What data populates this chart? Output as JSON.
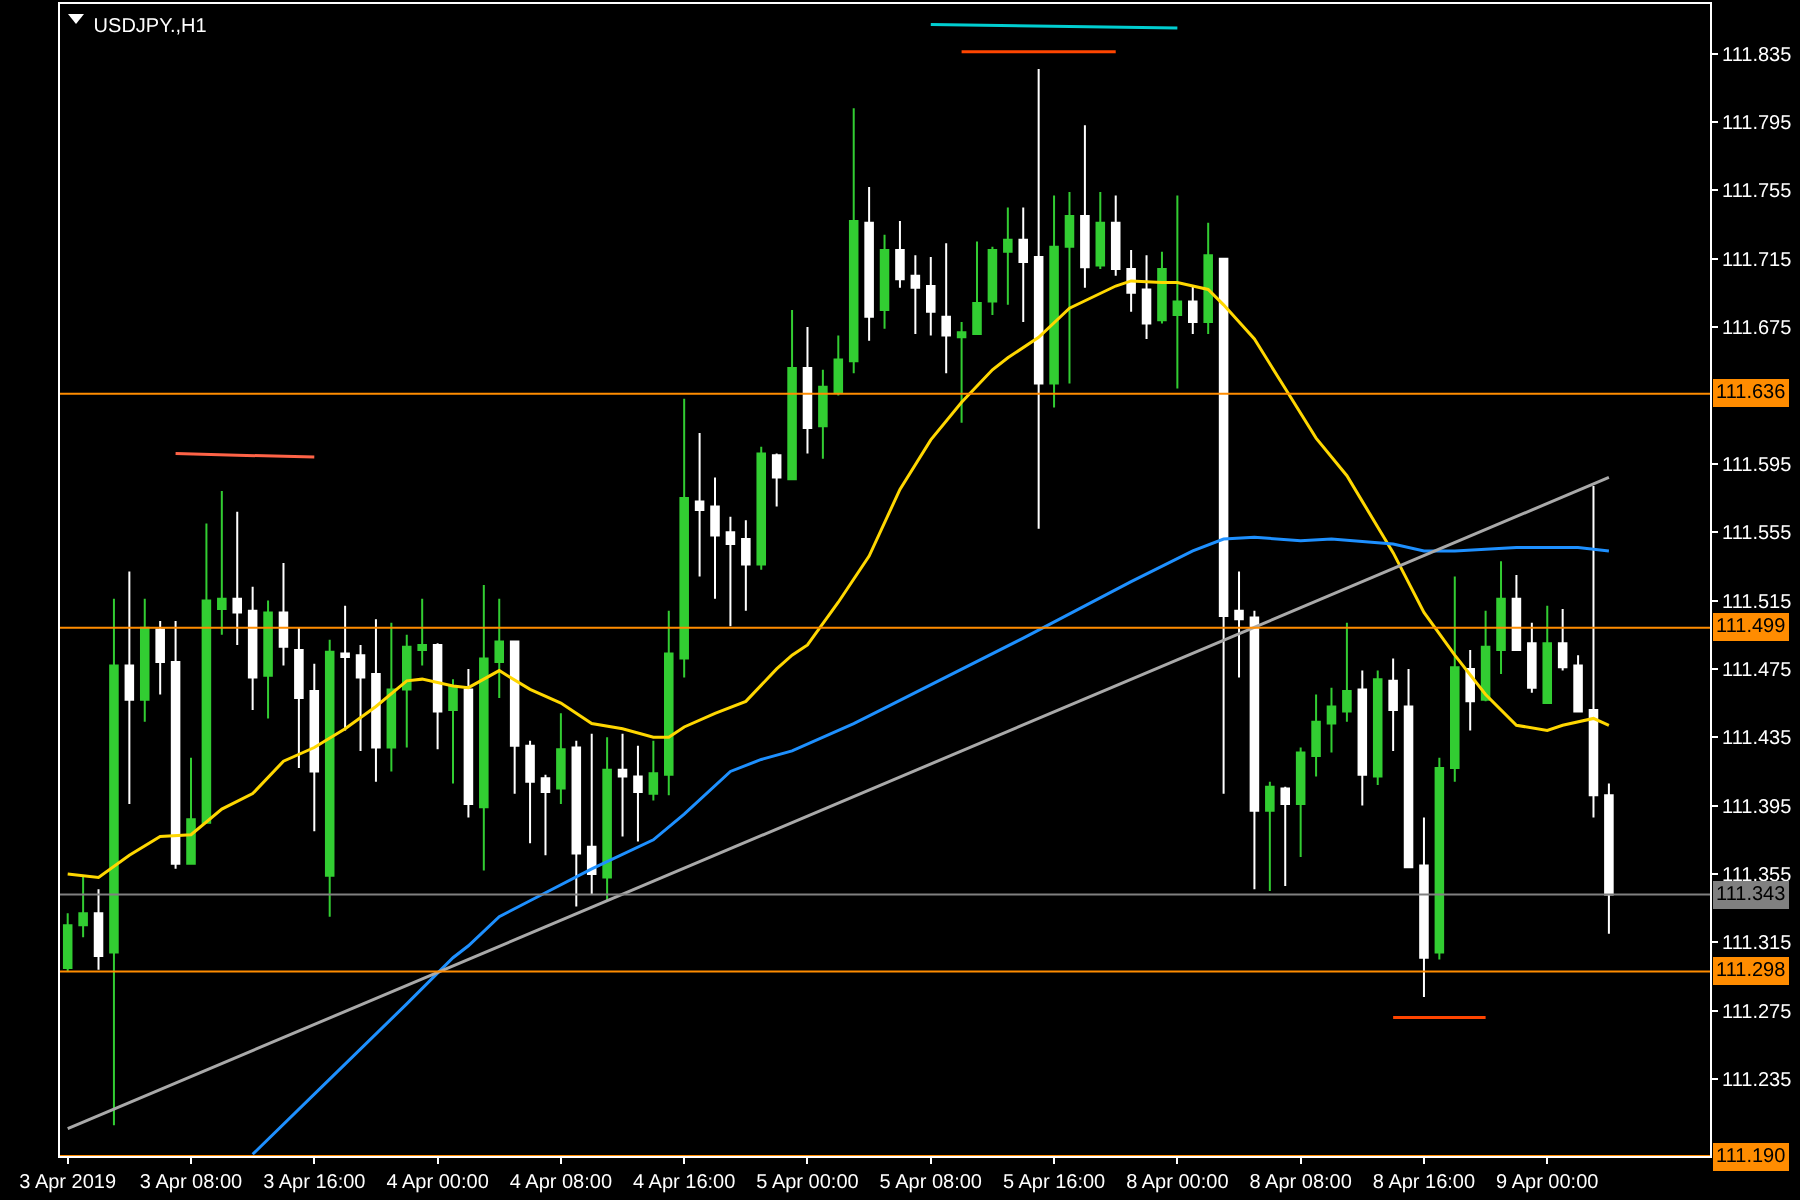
{
  "chart_data": {
    "type": "candlestick",
    "title": "USDJPY.,H1",
    "categories": [
      "3 Apr 2019",
      null,
      null,
      null,
      null,
      null,
      null,
      null,
      "3 Apr 08:00",
      null,
      null,
      null,
      null,
      null,
      null,
      null,
      "3 Apr 16:00",
      null,
      null,
      null,
      null,
      null,
      null,
      null,
      "4 Apr 00:00",
      null,
      null,
      null,
      null,
      null,
      null,
      null,
      "4 Apr 08:00",
      null,
      null,
      null,
      null,
      null,
      null,
      null,
      "4 Apr 16:00",
      null,
      null,
      null,
      null,
      null,
      null,
      null,
      "5 Apr 00:00",
      null,
      null,
      null,
      null,
      null,
      null,
      null,
      "5 Apr 08:00",
      null,
      null,
      null,
      null,
      null,
      null,
      null,
      "5 Apr 16:00",
      null,
      null,
      null,
      null,
      null,
      null,
      null,
      "8 Apr 00:00",
      null,
      null,
      null,
      null,
      null,
      null,
      null,
      "8 Apr 08:00",
      null,
      null,
      null,
      null,
      null,
      null,
      null,
      "8 Apr 16:00",
      null,
      null,
      null,
      null,
      null,
      null,
      null,
      "9 Apr 00:00",
      null,
      null,
      null,
      null
    ],
    "ohlc": [
      [
        111.3,
        111.332,
        111.298,
        111.325
      ],
      [
        111.325,
        111.354,
        111.318,
        111.332
      ],
      [
        111.332,
        111.346,
        111.299,
        111.307
      ],
      [
        111.309,
        111.516,
        111.208,
        111.477
      ],
      [
        111.477,
        111.532,
        111.396,
        111.457
      ],
      [
        111.457,
        111.516,
        111.444,
        111.499
      ],
      [
        111.498,
        111.503,
        111.46,
        111.479
      ],
      [
        111.479,
        111.503,
        111.358,
        111.361
      ],
      [
        111.361,
        111.423,
        111.361,
        111.387
      ],
      [
        111.385,
        111.56,
        111.385,
        111.515
      ],
      [
        111.51,
        111.579,
        111.495,
        111.516
      ],
      [
        111.516,
        111.567,
        111.489,
        111.508
      ],
      [
        111.509,
        111.523,
        111.451,
        111.47
      ],
      [
        111.471,
        111.515,
        111.446,
        111.508
      ],
      [
        111.508,
        111.537,
        111.477,
        111.488
      ],
      [
        111.486,
        111.499,
        111.417,
        111.458
      ],
      [
        111.462,
        111.478,
        111.38,
        111.415
      ],
      [
        111.354,
        111.492,
        111.33,
        111.485
      ],
      [
        111.484,
        111.512,
        111.439,
        111.482
      ],
      [
        111.483,
        111.489,
        111.427,
        111.47
      ],
      [
        111.472,
        111.504,
        111.409,
        111.429
      ],
      [
        111.429,
        111.502,
        111.415,
        111.463
      ],
      [
        111.463,
        111.495,
        111.429,
        111.488
      ],
      [
        111.486,
        111.516,
        111.477,
        111.489
      ],
      [
        111.489,
        111.49,
        111.428,
        111.45
      ],
      [
        111.451,
        111.469,
        111.408,
        111.465
      ],
      [
        111.463,
        111.475,
        111.388,
        111.396
      ],
      [
        111.394,
        111.524,
        111.357,
        111.481
      ],
      [
        111.479,
        111.516,
        111.458,
        111.491
      ],
      [
        111.491,
        111.491,
        111.402,
        111.43
      ],
      [
        111.43,
        111.433,
        111.373,
        111.409
      ],
      [
        111.411,
        111.413,
        111.366,
        111.403
      ],
      [
        111.405,
        111.449,
        111.396,
        111.428
      ],
      [
        111.429,
        111.433,
        111.336,
        111.367
      ],
      [
        111.371,
        111.437,
        111.343,
        111.355
      ],
      [
        111.353,
        111.435,
        111.339,
        111.416
      ],
      [
        111.416,
        111.437,
        111.377,
        111.412
      ],
      [
        111.412,
        111.43,
        111.374,
        111.403
      ],
      [
        111.402,
        111.433,
        111.398,
        111.414
      ],
      [
        111.413,
        111.509,
        111.401,
        111.484
      ],
      [
        111.481,
        111.633,
        111.47,
        111.575
      ],
      [
        111.573,
        111.613,
        111.529,
        111.568
      ],
      [
        111.57,
        111.587,
        111.516,
        111.553
      ],
      [
        111.555,
        111.564,
        111.5,
        111.548
      ],
      [
        111.551,
        111.562,
        111.509,
        111.536
      ],
      [
        111.536,
        111.605,
        111.533,
        111.601
      ],
      [
        111.6,
        111.601,
        111.57,
        111.587
      ],
      [
        111.586,
        111.685,
        111.586,
        111.651
      ],
      [
        111.651,
        111.675,
        111.601,
        111.616
      ],
      [
        111.617,
        111.65,
        111.598,
        111.64
      ],
      [
        111.637,
        111.67,
        111.635,
        111.656
      ],
      [
        111.655,
        111.803,
        111.648,
        111.737
      ],
      [
        111.736,
        111.757,
        111.667,
        111.681
      ],
      [
        111.685,
        111.729,
        111.674,
        111.72
      ],
      [
        111.72,
        111.737,
        111.698,
        111.703
      ],
      [
        111.705,
        111.717,
        111.671,
        111.698
      ],
      [
        111.699,
        111.716,
        111.67,
        111.684
      ],
      [
        111.681,
        111.724,
        111.648,
        111.67
      ],
      [
        111.669,
        111.678,
        111.619,
        111.672
      ],
      [
        111.671,
        111.725,
        111.671,
        111.689
      ],
      [
        111.69,
        111.722,
        111.682,
        111.72
      ],
      [
        111.719,
        111.745,
        111.688,
        111.726
      ],
      [
        111.726,
        111.745,
        111.678,
        111.713
      ],
      [
        111.716,
        111.826,
        111.557,
        111.642
      ],
      [
        111.642,
        111.752,
        111.628,
        111.722
      ],
      [
        111.722,
        111.754,
        111.642,
        111.74
      ],
      [
        111.74,
        111.793,
        111.698,
        111.71
      ],
      [
        111.711,
        111.754,
        111.709,
        111.736
      ],
      [
        111.736,
        111.752,
        111.705,
        111.709
      ],
      [
        111.709,
        111.72,
        111.684,
        111.695
      ],
      [
        111.697,
        111.717,
        111.668,
        111.677
      ],
      [
        111.679,
        111.719,
        111.677,
        111.709
      ],
      [
        111.682,
        111.752,
        111.639,
        111.69
      ],
      [
        111.69,
        111.699,
        111.671,
        111.678
      ],
      [
        111.678,
        111.736,
        111.671,
        111.717
      ],
      [
        111.715,
        111.715,
        111.402,
        111.506
      ],
      [
        111.509,
        111.532,
        111.47,
        111.504
      ],
      [
        111.505,
        111.509,
        111.346,
        111.392
      ],
      [
        111.392,
        111.409,
        111.345,
        111.406
      ],
      [
        111.405,
        111.406,
        111.348,
        111.396
      ],
      [
        111.396,
        111.429,
        111.365,
        111.426
      ],
      [
        111.424,
        111.46,
        111.412,
        111.444
      ],
      [
        111.443,
        111.464,
        111.426,
        111.453
      ],
      [
        111.45,
        111.502,
        111.444,
        111.462
      ],
      [
        111.463,
        111.474,
        111.395,
        111.413
      ],
      [
        111.412,
        111.474,
        111.407,
        111.469
      ],
      [
        111.468,
        111.481,
        111.427,
        111.451
      ],
      [
        111.453,
        111.475,
        111.359,
        111.359
      ],
      [
        111.36,
        111.388,
        111.283,
        111.306
      ],
      [
        111.309,
        111.423,
        111.305,
        111.417
      ],
      [
        111.417,
        111.529,
        111.409,
        111.476
      ],
      [
        111.475,
        111.486,
        111.439,
        111.456
      ],
      [
        111.457,
        111.509,
        111.456,
        111.488
      ],
      [
        111.486,
        111.538,
        111.472,
        111.516
      ],
      [
        111.516,
        111.53,
        111.486,
        111.486
      ],
      [
        111.49,
        111.502,
        111.461,
        111.464
      ],
      [
        111.455,
        111.512,
        111.455,
        111.49
      ],
      [
        111.49,
        111.51,
        111.474,
        111.476
      ],
      [
        111.477,
        111.483,
        111.45,
        111.45
      ],
      [
        111.451,
        111.582,
        111.388,
        111.401
      ],
      [
        111.401,
        111.408,
        111.32,
        111.343
      ]
    ],
    "colors": [
      "#32cd32",
      "#32cd32",
      "#ffffff",
      "#32cd32",
      "#ffffff",
      "#32cd32",
      "#ffffff",
      "#ffffff",
      "#32cd32",
      "#32cd32",
      "#32cd32",
      "#ffffff",
      "#ffffff",
      "#32cd32",
      "#ffffff",
      "#ffffff",
      "#ffffff",
      "#32cd32",
      "#ffffff",
      "#ffffff",
      "#ffffff",
      "#32cd32",
      "#32cd32",
      "#32cd32",
      "#ffffff",
      "#32cd32",
      "#ffffff",
      "#32cd32",
      "#32cd32",
      "#ffffff",
      "#ffffff",
      "#ffffff",
      "#32cd32",
      "#ffffff",
      "#ffffff",
      "#32cd32",
      "#ffffff",
      "#ffffff",
      "#32cd32",
      "#32cd32",
      "#32cd32",
      "#ffffff",
      "#ffffff",
      "#ffffff",
      "#ffffff",
      "#32cd32",
      "#ffffff",
      "#32cd32",
      "#ffffff",
      "#32cd32",
      "#32cd32",
      "#32cd32",
      "#ffffff",
      "#32cd32",
      "#ffffff",
      "#ffffff",
      "#ffffff",
      "#ffffff",
      "#32cd32",
      "#32cd32",
      "#32cd32",
      "#32cd32",
      "#ffffff",
      "#ffffff",
      "#32cd32",
      "#32cd32",
      "#ffffff",
      "#32cd32",
      "#ffffff",
      "#ffffff",
      "#ffffff",
      "#32cd32",
      "#32cd32",
      "#ffffff",
      "#32cd32",
      "#ffffff",
      "#ffffff",
      "#ffffff",
      "#32cd32",
      "#ffffff",
      "#32cd32",
      "#32cd32",
      "#32cd32",
      "#32cd32",
      "#ffffff",
      "#32cd32",
      "#ffffff",
      "#ffffff",
      "#ffffff",
      "#32cd32",
      "#32cd32",
      "#ffffff",
      "#32cd32",
      "#32cd32",
      "#ffffff",
      "#ffffff",
      "#32cd32",
      "#ffffff",
      "#ffffff",
      "#ffffff",
      "#ffffff"
    ],
    "series": [
      {
        "type": "line",
        "color": "#ffd700",
        "values": [
          111.355,
          null,
          111.353,
          null,
          111.366,
          null,
          111.377,
          null,
          111.378,
          null,
          111.393,
          null,
          111.402,
          null,
          111.421,
          null,
          111.429,
          null,
          111.44,
          null,
          111.453,
          null,
          111.468,
          111.469,
          null,
          111.465,
          111.464,
          null,
          111.474,
          null,
          111.463,
          null,
          111.455,
          null,
          111.443,
          null,
          111.44,
          null,
          111.435,
          111.435,
          111.441,
          null,
          111.449,
          null,
          111.456,
          null,
          111.475,
          111.483,
          111.489,
          null,
          111.514,
          null,
          111.541,
          null,
          111.58,
          null,
          111.609,
          null,
          111.631,
          null,
          111.65,
          111.657,
          null,
          111.669,
          null,
          111.686,
          null,
          null,
          111.699,
          111.702,
          null,
          111.701,
          111.701,
          null,
          111.697,
          111.688,
          null,
          111.668,
          null,
          111.639,
          null,
          111.61,
          null,
          111.588,
          111.573,
          null,
          111.543,
          null,
          111.508,
          null,
          111.483,
          null,
          111.46,
          null,
          111.442,
          null,
          111.439,
          111.442,
          null,
          111.446,
          111.442
        ]
      },
      {
        "type": "line",
        "color": "#1e90ff",
        "values": [
          null,
          null,
          null,
          null,
          null,
          null,
          null,
          null,
          null,
          null,
          null,
          null,
          111.191,
          null,
          null,
          null,
          null,
          111.235,
          null,
          null,
          null,
          null,
          111.279,
          null,
          null,
          111.306,
          111.313,
          null,
          111.33,
          null,
          null,
          111.344,
          null,
          null,
          111.358,
          null,
          null,
          null,
          111.375,
          null,
          111.39,
          null,
          null,
          111.415,
          null,
          111.422,
          null,
          111.427,
          null,
          null,
          null,
          111.443,
          null,
          111.452,
          null,
          null,
          null,
          null,
          null,
          null,
          null,
          null,
          111.493,
          null,
          null,
          null,
          null,
          null,
          null,
          111.526,
          null,
          null,
          null,
          111.544,
          null,
          111.551,
          null,
          111.552,
          null,
          null,
          111.55,
          null,
          111.551,
          null,
          null,
          null,
          111.548,
          null,
          111.544,
          null,
          111.544,
          null,
          null,
          null,
          111.546,
          null,
          null,
          null,
          111.546,
          null,
          111.544
        ]
      },
      {
        "type": "line",
        "color": "#a9a9a9",
        "values": [
          111.206,
          null,
          null,
          null,
          null,
          null,
          null,
          null,
          null,
          null,
          null,
          null,
          null,
          null,
          null,
          null,
          null,
          null,
          null,
          null,
          null,
          null,
          null,
          null,
          null,
          null,
          null,
          null,
          null,
          null,
          null,
          null,
          null,
          null,
          null,
          null,
          null,
          null,
          null,
          null,
          null,
          null,
          null,
          null,
          null,
          null,
          null,
          null,
          null,
          null,
          null,
          null,
          null,
          null,
          null,
          null,
          null,
          null,
          null,
          null,
          null,
          null,
          null,
          null,
          null,
          null,
          null,
          null,
          null,
          null,
          null,
          null,
          null,
          null,
          null,
          null,
          null,
          null,
          null,
          null,
          null,
          null,
          null,
          null,
          null,
          null,
          null,
          null,
          null,
          null,
          null,
          null,
          null,
          null,
          null,
          null,
          null,
          null,
          null,
          null,
          111.587
        ]
      },
      {
        "type": "line",
        "color": "#ff6347",
        "values": [
          null,
          null,
          null,
          null,
          null,
          null,
          null,
          111.601,
          null,
          null,
          null,
          111.6,
          null,
          null,
          null,
          null,
          111.599,
          null,
          null,
          null,
          null,
          null,
          null,
          null,
          null,
          null,
          null,
          null,
          null,
          null,
          null,
          null,
          null,
          null,
          null,
          null,
          null,
          null,
          null,
          null,
          null,
          null,
          null,
          null,
          null,
          null,
          null,
          null,
          null,
          null,
          null,
          null,
          null,
          null,
          null,
          null,
          null,
          null,
          null,
          null,
          null,
          null,
          null,
          null,
          null,
          null,
          null,
          null,
          null,
          null,
          null,
          null,
          null,
          null,
          null,
          null,
          null,
          null,
          null,
          null,
          null,
          null,
          null,
          null,
          null,
          null,
          null,
          null,
          null,
          null,
          null,
          null,
          null,
          null,
          null,
          null,
          null,
          null,
          null,
          null,
          null
        ]
      },
      {
        "type": "line",
        "color": "#ff4500",
        "values": [
          null,
          null,
          null,
          null,
          null,
          null,
          null,
          null,
          null,
          null,
          null,
          null,
          null,
          null,
          null,
          null,
          null,
          null,
          null,
          null,
          null,
          null,
          null,
          null,
          null,
          null,
          null,
          null,
          null,
          null,
          null,
          null,
          null,
          null,
          null,
          null,
          null,
          null,
          null,
          null,
          null,
          null,
          null,
          null,
          null,
          null,
          null,
          null,
          null,
          null,
          null,
          null,
          null,
          null,
          null,
          null,
          null,
          null,
          111.836,
          null,
          null,
          null,
          null,
          null,
          null,
          null,
          null,
          null,
          111.836,
          null,
          null,
          null,
          null,
          null,
          null,
          null,
          null,
          null,
          null,
          null,
          null,
          null,
          null,
          null,
          null,
          null,
          null,
          null,
          null,
          null,
          null,
          null,
          null,
          null,
          null,
          null,
          null,
          null,
          null,
          null,
          null
        ]
      },
      {
        "type": "line",
        "color": "#00ced1",
        "values": [
          null,
          null,
          null,
          null,
          null,
          null,
          null,
          null,
          null,
          null,
          null,
          null,
          null,
          null,
          null,
          null,
          null,
          null,
          null,
          null,
          null,
          null,
          null,
          null,
          null,
          null,
          null,
          null,
          null,
          null,
          null,
          null,
          null,
          null,
          null,
          null,
          null,
          null,
          null,
          null,
          null,
          null,
          null,
          null,
          null,
          null,
          null,
          null,
          null,
          null,
          null,
          null,
          null,
          null,
          null,
          null,
          111.852,
          null,
          null,
          null,
          null,
          null,
          null,
          null,
          null,
          null,
          null,
          null,
          null,
          null,
          null,
          null,
          111.85,
          null,
          null,
          null,
          null,
          null,
          null,
          null,
          null,
          null,
          null,
          null,
          null,
          null,
          null,
          null,
          null,
          null,
          null,
          null,
          null,
          null,
          null,
          null,
          null,
          null,
          null,
          null,
          null
        ]
      },
      {
        "type": "line",
        "color": "#ff4500",
        "values": [
          null,
          null,
          null,
          null,
          null,
          null,
          null,
          null,
          null,
          null,
          null,
          null,
          null,
          null,
          null,
          null,
          null,
          null,
          null,
          null,
          null,
          null,
          null,
          null,
          null,
          null,
          null,
          null,
          null,
          null,
          null,
          null,
          null,
          null,
          null,
          null,
          null,
          null,
          null,
          null,
          null,
          null,
          null,
          null,
          null,
          null,
          null,
          null,
          null,
          null,
          null,
          null,
          null,
          null,
          null,
          null,
          null,
          null,
          null,
          null,
          null,
          null,
          null,
          null,
          null,
          null,
          null,
          null,
          null,
          null,
          null,
          null,
          null,
          null,
          null,
          null,
          null,
          null,
          null,
          null,
          null,
          null,
          null,
          null,
          null,
          null,
          111.271,
          null,
          null,
          null,
          null,
          null,
          111.271,
          null,
          null,
          null,
          null,
          null,
          null,
          null,
          null
        ]
      }
    ],
    "ylim": [
      111.19,
      111.864
    ],
    "yticks": [
      111.235,
      111.275,
      111.315,
      111.355,
      111.395,
      111.435,
      111.475,
      111.515,
      111.555,
      111.595,
      111.675,
      111.715,
      111.755,
      111.795,
      111.835
    ],
    "ref_lines": [
      {
        "axis": "y",
        "value": 111.636,
        "label": "111.636",
        "color": "#ff8c00"
      },
      {
        "axis": "y",
        "value": 111.499,
        "label": "111.499",
        "color": "#ff8c00"
      },
      {
        "axis": "y",
        "value": 111.298,
        "label": "111.298",
        "color": "#ff8c00"
      },
      {
        "axis": "y",
        "value": 111.19,
        "label": "111.190",
        "color": "#ff8c00"
      },
      {
        "axis": "y",
        "value": 111.343,
        "label": "111.343",
        "color": "#808080"
      }
    ]
  }
}
